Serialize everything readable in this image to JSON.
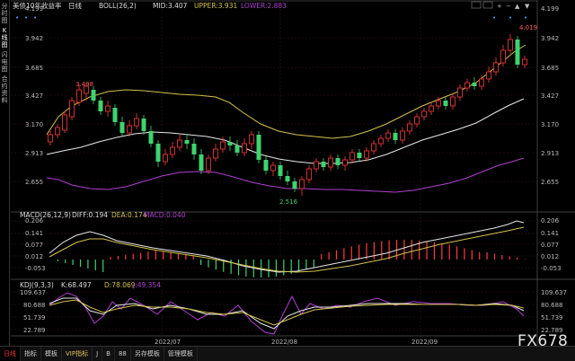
{
  "sidebar": {
    "items": [
      "分时图",
      "K线图",
      "闪电图",
      "合约资料"
    ]
  },
  "main_header": {
    "title": "美债10年收益率",
    "period": "日线",
    "indicator": "BOLL(26,2)",
    "mid": "MID:3.407",
    "upper": "UPPER:3.931",
    "lower": "LOWER:2.883"
  },
  "main_axis": {
    "ticks": [
      "4.199",
      "3.942",
      "3.685",
      "3.427",
      "3.170",
      "2.913",
      "2.655"
    ]
  },
  "annotations": {
    "high": "4.019",
    "mid_high": "3.498",
    "low": "2.516"
  },
  "toolbar_icons": [
    "gear-icon",
    "grid-icon",
    "plus-icon",
    "minus-icon",
    "up-icon",
    "down-icon"
  ],
  "macd_header": {
    "label": "MACD(26,12,9)",
    "diff": "DIFF:0.194",
    "dea": "DEA:0.174",
    "macd": "MACD:0.040"
  },
  "macd_axis": {
    "ticks": [
      "0.206",
      "0.141",
      "0.077",
      "0.012",
      "-0.053"
    ]
  },
  "kdj_header": {
    "label": "KDJ(9,3,3)",
    "k": "K:68.497",
    "d": "D:78.069",
    "j": "J:49.354"
  },
  "kdj_axis": {
    "ticks": [
      "109.637",
      "80.688",
      "51.739",
      "22.789"
    ]
  },
  "date_axis": {
    "labels": [
      "2022/07",
      "2022/08",
      "2022/09"
    ]
  },
  "bottom_tabs": [
    "日线",
    "指标",
    "模板",
    "VIP指标",
    "J",
    "B",
    "88",
    "另存模板",
    "管理模板"
  ],
  "watermark": "FX678",
  "colors": {
    "up": "#ff3b3b",
    "down": "#3ed36f",
    "mid": "#e8e8e8",
    "upper": "#d4c24a",
    "lower": "#b03fd0"
  }
}
